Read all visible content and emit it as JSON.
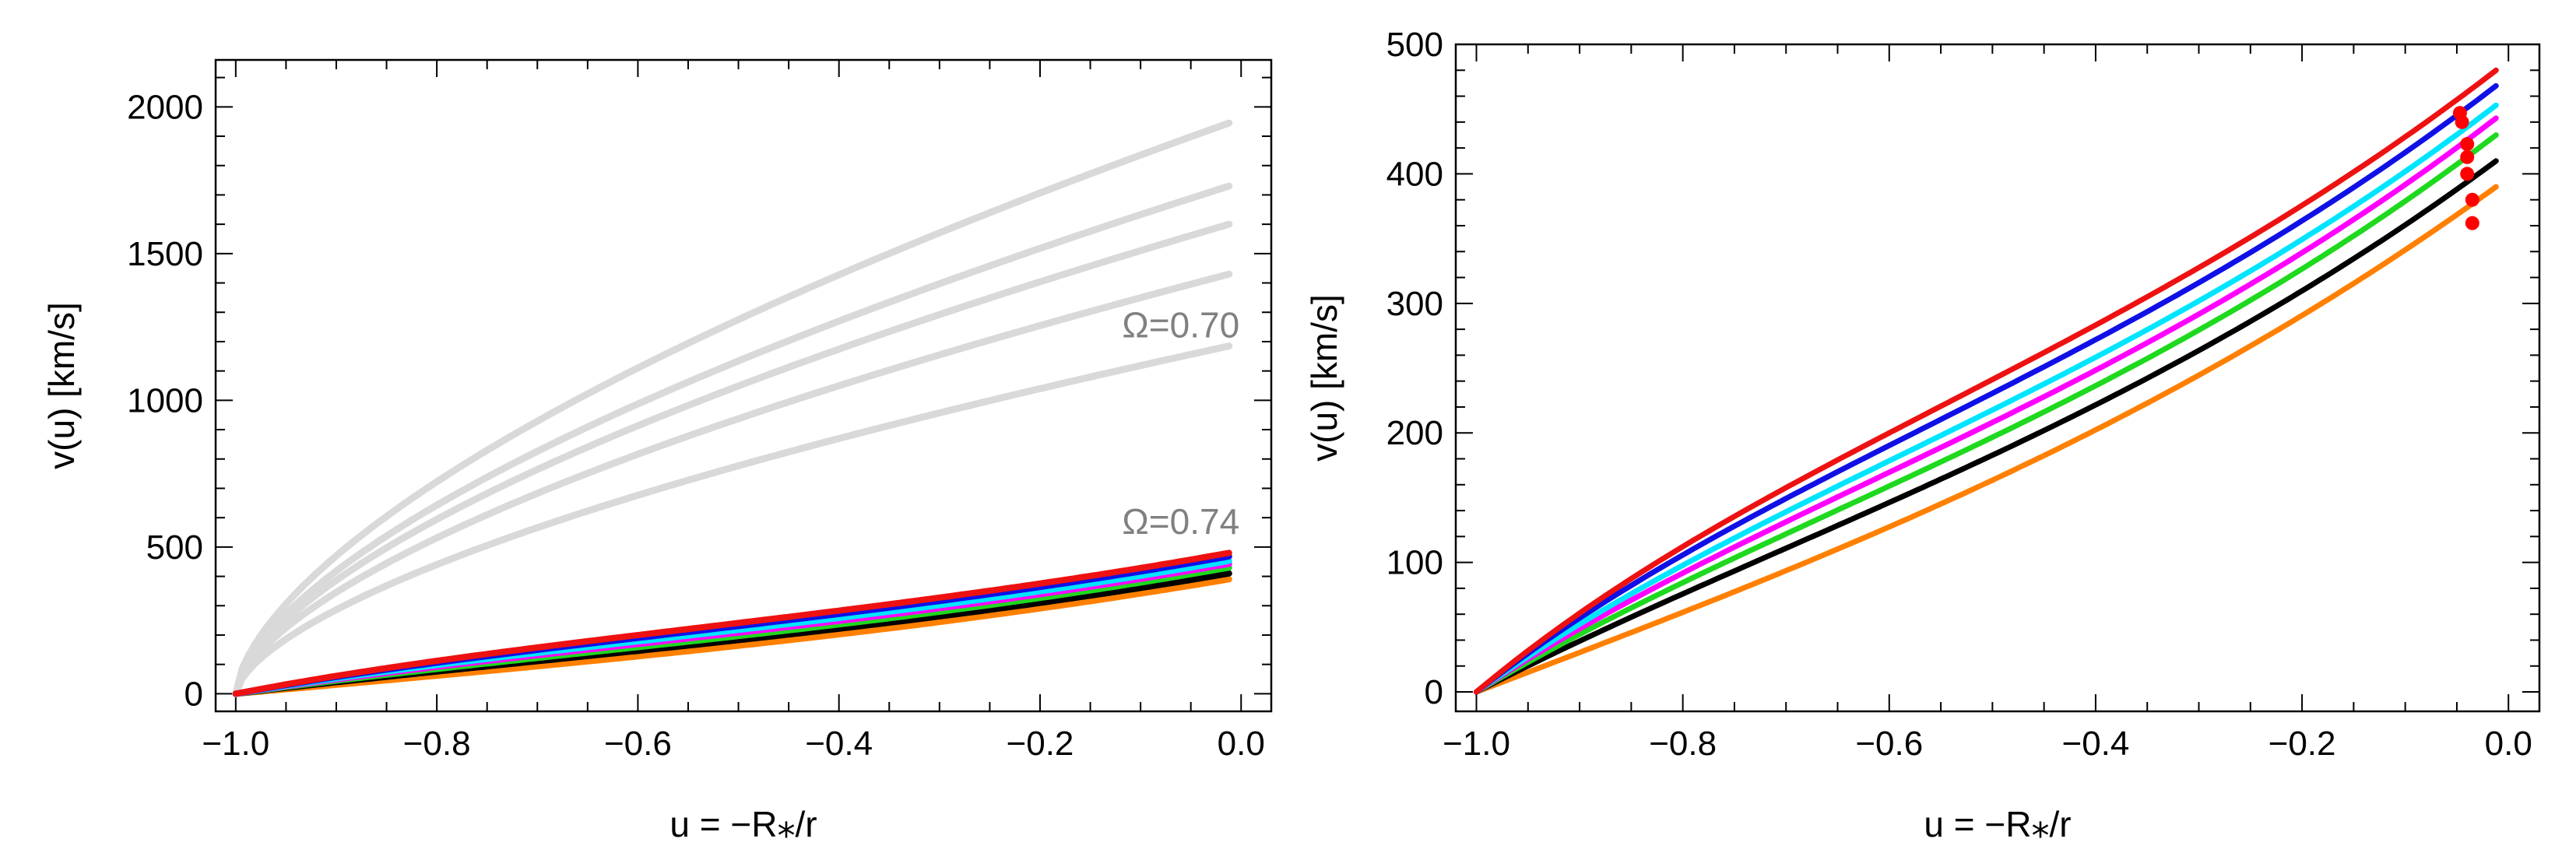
{
  "chart_data": [
    {
      "type": "line",
      "panel": "left",
      "xlabel": "u = −R⁎/r",
      "ylabel": "v(u)  [km/s]",
      "xlim": [
        -1.02,
        0.03
      ],
      "ylim": [
        -60,
        2160
      ],
      "xticks": [
        -1.0,
        -0.8,
        -0.6,
        -0.4,
        -0.2,
        0.0
      ],
      "xtick_labels": [
        "−1.0",
        "−0.8",
        "−0.6",
        "−0.4",
        "−0.2",
        "0.0"
      ],
      "yticks": [
        0,
        500,
        1000,
        1500,
        2000
      ],
      "ytick_labels": [
        "0",
        "500",
        "1000",
        "1500",
        "2000"
      ],
      "annotations": [
        {
          "text": "Ω=0.70",
          "x": -0.06,
          "y": 1215
        },
        {
          "text": "Ω=0.74",
          "x": -0.06,
          "y": 545
        }
      ],
      "series": [
        {
          "name": "gray-1",
          "color": "#d9d9d9",
          "vmax": 1945,
          "shape": "gray"
        },
        {
          "name": "gray-2",
          "color": "#d9d9d9",
          "vmax": 1730,
          "shape": "gray"
        },
        {
          "name": "gray-3",
          "color": "#d9d9d9",
          "vmax": 1600,
          "shape": "gray"
        },
        {
          "name": "gray-4",
          "color": "#d9d9d9",
          "vmax": 1430,
          "shape": "gray"
        },
        {
          "name": "gray-5",
          "color": "#d9d9d9",
          "vmax": 1185,
          "shape": "gray"
        },
        {
          "name": "orange",
          "color": "#ff8000",
          "vmax": 390,
          "shape": "wind",
          "a": 0,
          "b": 300,
          "c": 90,
          "k": 3
        },
        {
          "name": "black",
          "color": "#000000",
          "vmax": 410,
          "shape": "wind",
          "a": 50,
          "b": 255,
          "c": 105,
          "k": 3
        },
        {
          "name": "green",
          "color": "#1ed91e",
          "vmax": 430,
          "shape": "wind",
          "a": 75,
          "b": 240,
          "c": 115,
          "k": 3
        },
        {
          "name": "magenta",
          "color": "#ff00ff",
          "vmax": 443,
          "shape": "wind",
          "a": 95,
          "b": 230,
          "c": 118,
          "k": 3
        },
        {
          "name": "cyan",
          "color": "#00e5ff",
          "vmax": 453,
          "shape": "wind",
          "a": 110,
          "b": 225,
          "c": 118,
          "k": 3
        },
        {
          "name": "blue",
          "color": "#1010e6",
          "vmax": 468,
          "shape": "wind",
          "a": 130,
          "b": 218,
          "c": 120,
          "k": 3
        },
        {
          "name": "red",
          "color": "#ee1111",
          "vmax": 480,
          "shape": "wind",
          "a": 145,
          "b": 215,
          "c": 120,
          "k": 3
        }
      ]
    },
    {
      "type": "line",
      "panel": "right",
      "xlabel": "u = −R⁎/r",
      "ylabel": "v(u)  [km/s]",
      "xlim": [
        -1.02,
        0.03
      ],
      "ylim": [
        -15,
        500
      ],
      "xticks": [
        -1.0,
        -0.8,
        -0.6,
        -0.4,
        -0.2,
        0.0
      ],
      "xtick_labels": [
        "−1.0",
        "−0.8",
        "−0.6",
        "−0.4",
        "−0.2",
        "0.0"
      ],
      "yticks": [
        0,
        100,
        200,
        300,
        400,
        500
      ],
      "ytick_labels": [
        "0",
        "100",
        "200",
        "300",
        "400",
        "500"
      ],
      "series": [
        {
          "name": "orange",
          "color": "#ff8000",
          "vmax": 390,
          "shape": "wind",
          "a": 0,
          "b": 300,
          "c": 90,
          "k": 3
        },
        {
          "name": "black",
          "color": "#000000",
          "vmax": 410,
          "shape": "wind",
          "a": 50,
          "b": 255,
          "c": 105,
          "k": 3
        },
        {
          "name": "green",
          "color": "#1ed91e",
          "vmax": 430,
          "shape": "wind",
          "a": 75,
          "b": 240,
          "c": 115,
          "k": 3
        },
        {
          "name": "magenta",
          "color": "#ff00ff",
          "vmax": 443,
          "shape": "wind",
          "a": 95,
          "b": 230,
          "c": 118,
          "k": 3
        },
        {
          "name": "cyan",
          "color": "#00e5ff",
          "vmax": 453,
          "shape": "wind",
          "a": 110,
          "b": 225,
          "c": 118,
          "k": 3
        },
        {
          "name": "blue",
          "color": "#1010e6",
          "vmax": 468,
          "shape": "wind",
          "a": 130,
          "b": 218,
          "c": 120,
          "k": 3
        },
        {
          "name": "red",
          "color": "#ee1111",
          "vmax": 480,
          "shape": "wind",
          "a": 145,
          "b": 215,
          "c": 120,
          "k": 3
        }
      ],
      "markers": {
        "color": "#ff0000",
        "points": [
          {
            "x": -0.047,
            "y": 447
          },
          {
            "x": -0.045,
            "y": 440
          },
          {
            "x": -0.04,
            "y": 423
          },
          {
            "x": -0.04,
            "y": 413
          },
          {
            "x": -0.04,
            "y": 400
          },
          {
            "x": -0.035,
            "y": 380
          },
          {
            "x": -0.035,
            "y": 362
          }
        ]
      }
    }
  ]
}
